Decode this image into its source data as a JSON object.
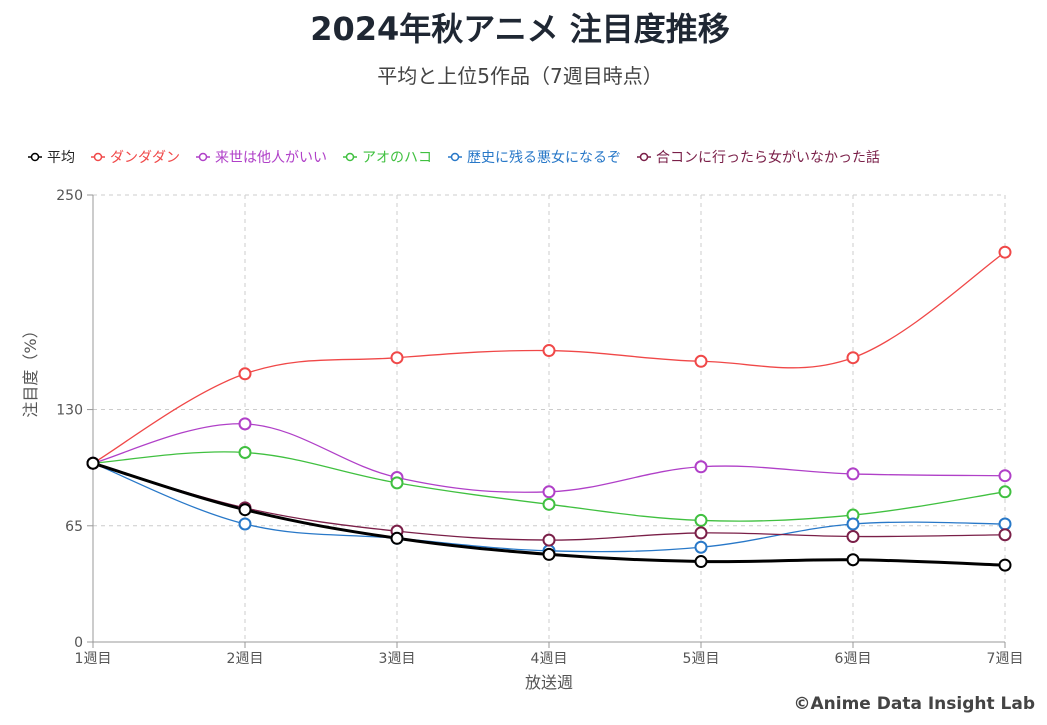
{
  "chart_data": {
    "type": "line",
    "title": "2024年秋アニメ 注目度推移",
    "subtitle": "平均と上位5作品（7週目時点）",
    "xlabel": "放送週",
    "ylabel": "注目度（%）",
    "categories": [
      "1週目",
      "2週目",
      "3週目",
      "4週目",
      "5週目",
      "6週目",
      "7週目"
    ],
    "ylim": [
      0,
      250
    ],
    "yticks": [
      0,
      65,
      130,
      250
    ],
    "grid": true,
    "legend_position": "top-left",
    "series": [
      {
        "name": "平均",
        "color": "#000000",
        "values": [
          100,
          74,
          58,
          49,
          45,
          46,
          43
        ]
      },
      {
        "name": "ダンダダン",
        "color": "#f04848",
        "values": [
          100,
          150,
          159,
          163,
          157,
          159,
          218
        ]
      },
      {
        "name": "来世は他人がいい",
        "color": "#b040c8",
        "values": [
          100,
          122,
          92,
          84,
          98,
          94,
          93
        ]
      },
      {
        "name": "アオのハコ",
        "color": "#40c040",
        "values": [
          100,
          106,
          89,
          77,
          68,
          71,
          84
        ]
      },
      {
        "name": "歴史に残る悪女になるぞ",
        "color": "#2878c8",
        "values": [
          100,
          66,
          58,
          51,
          53,
          66,
          66
        ]
      },
      {
        "name": "合コンに行ったら女がいなかった話",
        "color": "#7a1f48",
        "values": [
          100,
          75,
          62,
          57,
          61,
          59,
          60
        ]
      }
    ]
  },
  "copyright": "©Anime Data Insight Lab"
}
